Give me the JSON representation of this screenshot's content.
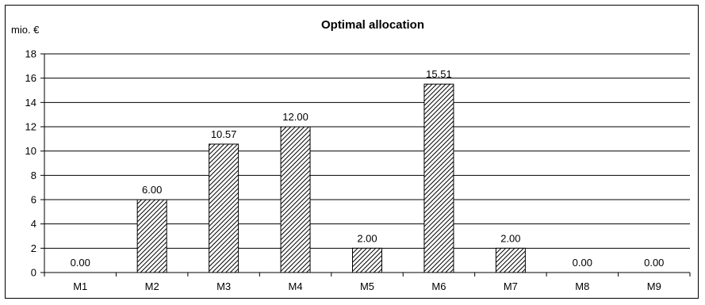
{
  "chart_data": {
    "type": "bar",
    "title": "Optimal allocation",
    "ylabel": "mio. €",
    "xlabel": "",
    "categories": [
      "M1",
      "M2",
      "M3",
      "M4",
      "M5",
      "M6",
      "M7",
      "M8",
      "M9"
    ],
    "values": [
      0.0,
      6.0,
      10.57,
      12.0,
      2.0,
      15.51,
      2.0,
      0.0,
      0.0
    ],
    "data_labels": [
      "0.00",
      "6.00",
      "10.57",
      "12.00",
      "2.00",
      "15.51",
      "2.00",
      "0.00",
      "0.00"
    ],
    "ylim": [
      0,
      18
    ],
    "yticks": [
      0,
      2,
      4,
      6,
      8,
      10,
      12,
      14,
      16,
      18
    ],
    "grid": true,
    "legend": "none",
    "bar_fill": "diagonal hatch",
    "colors": {
      "bar_stroke": "#000000",
      "hatch": "#000000",
      "grid": "#000000",
      "background": "#ffffff"
    }
  }
}
